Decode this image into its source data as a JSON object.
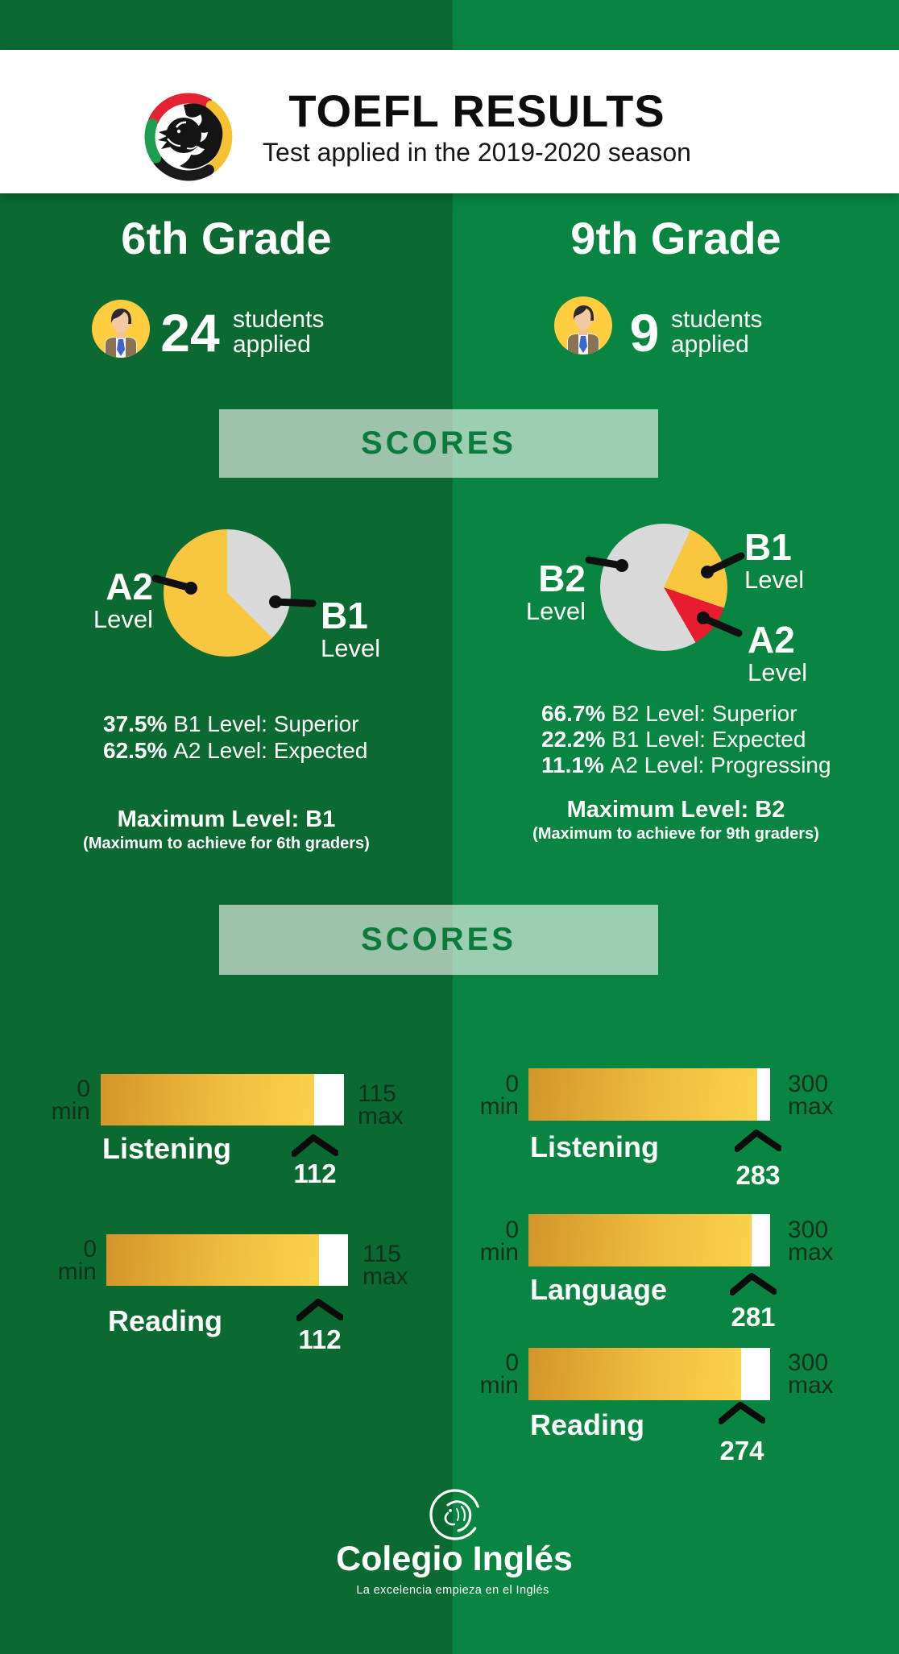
{
  "header": {
    "title": "TOEFL RESULTS",
    "subtitle": "Test applied in the 2019-2020 season"
  },
  "scores_heading_1": "SCORES",
  "scores_heading_2": "SCORES",
  "grade6": {
    "title": "6th Grade",
    "students_count": "24",
    "students_word": "students",
    "applied_word": "applied",
    "pie_labels": {
      "a2": {
        "big": "A2",
        "small": "Level"
      },
      "b1": {
        "big": "B1",
        "small": "Level"
      }
    },
    "legend": [
      {
        "pct": "37.5%",
        "desc": "B1 Level: Superior"
      },
      {
        "pct": "62.5%",
        "desc": "A2 Level: Expected"
      }
    ],
    "max_title": "Maximum Level: B1",
    "max_note": "(Maximum to achieve for 6th graders)",
    "bars": [
      {
        "label": "Listening",
        "min_num": "0",
        "min_word": "min",
        "max_num": "115",
        "max_word": "max",
        "score": "112",
        "fill_pct": 87.8
      },
      {
        "label": "Reading",
        "min_num": "0",
        "min_word": "min",
        "max_num": "115",
        "max_word": "max",
        "score": "112",
        "fill_pct": 88
      }
    ]
  },
  "grade9": {
    "title": "9th Grade",
    "students_count": "9",
    "students_word": "students",
    "applied_word": "applied",
    "pie_labels": {
      "b2": {
        "big": "B2",
        "small": "Level"
      },
      "b1": {
        "big": "B1",
        "small": "Level"
      },
      "a2": {
        "big": "A2",
        "small": "Level"
      }
    },
    "legend": [
      {
        "pct": "66.7%",
        "desc": "B2 Level: Superior"
      },
      {
        "pct": "22.2%",
        "desc": "B1 Level: Expected"
      },
      {
        "pct": "11.1%",
        "desc": "A2 Level: Progressing"
      }
    ],
    "max_title": "Maximum Level: B2",
    "max_note": "(Maximum to achieve for 9th graders)",
    "bars": [
      {
        "label": "Listening",
        "min_num": "0",
        "min_word": "min",
        "max_num": "300",
        "max_word": "max",
        "score": "283",
        "fill_pct": 94.5
      },
      {
        "label": "Language",
        "min_num": "0",
        "min_word": "min",
        "max_num": "300",
        "max_word": "max",
        "score": "281",
        "fill_pct": 92.3
      },
      {
        "label": "Reading",
        "min_num": "0",
        "min_word": "min",
        "max_num": "300",
        "max_word": "max",
        "score": "274",
        "fill_pct": 88
      }
    ]
  },
  "footer": {
    "name": "Colegio Inglés",
    "tagline": "La excelencia empieza en el Inglés"
  },
  "colors": {
    "left_background": "#0a6a32",
    "right_background": "#088540",
    "pie_yellow": "#f9c63f",
    "pie_gray": "#d9d9d9",
    "pie_red": "#e81c2e",
    "bar_gold_start": "#d2952a",
    "bar_gold_end": "#fbd14b",
    "scores_text": "#0a7b3a",
    "dark_label": "#13301e"
  },
  "chart_data": [
    {
      "type": "pie",
      "title": "6th Grade TOEFL levels (24 students applied)",
      "labels": [
        "B1 Level",
        "A2 Level"
      ],
      "values": [
        37.5,
        62.5
      ],
      "colors": [
        "#d9d9d9",
        "#f9c63f"
      ],
      "annotations": [
        "37.5% B1 Level: Superior",
        "62.5% A2 Level: Expected"
      ],
      "max_level": "Maximum Level: B1"
    },
    {
      "type": "pie",
      "title": "9th Grade TOEFL levels (9 students applied)",
      "labels": [
        "B2 Level",
        "B1 Level",
        "A2 Level"
      ],
      "values": [
        66.7,
        22.2,
        11.1
      ],
      "colors": [
        "#d9d9d9",
        "#f9c63f",
        "#e81c2e"
      ],
      "annotations": [
        "66.7% B2 Level: Superior",
        "22.2% B1 Level: Expected",
        "11.1% A2 Level: Progressing"
      ],
      "max_level": "Maximum Level: B2"
    },
    {
      "type": "bar",
      "title": "6th Grade TOEFL section scores",
      "categories": [
        "Listening",
        "Reading"
      ],
      "values": [
        112,
        112
      ],
      "xlim": [
        0,
        115
      ]
    },
    {
      "type": "bar",
      "title": "9th Grade TOEFL section scores",
      "categories": [
        "Listening",
        "Language",
        "Reading"
      ],
      "values": [
        283,
        281,
        274
      ],
      "xlim": [
        0,
        300
      ]
    }
  ]
}
